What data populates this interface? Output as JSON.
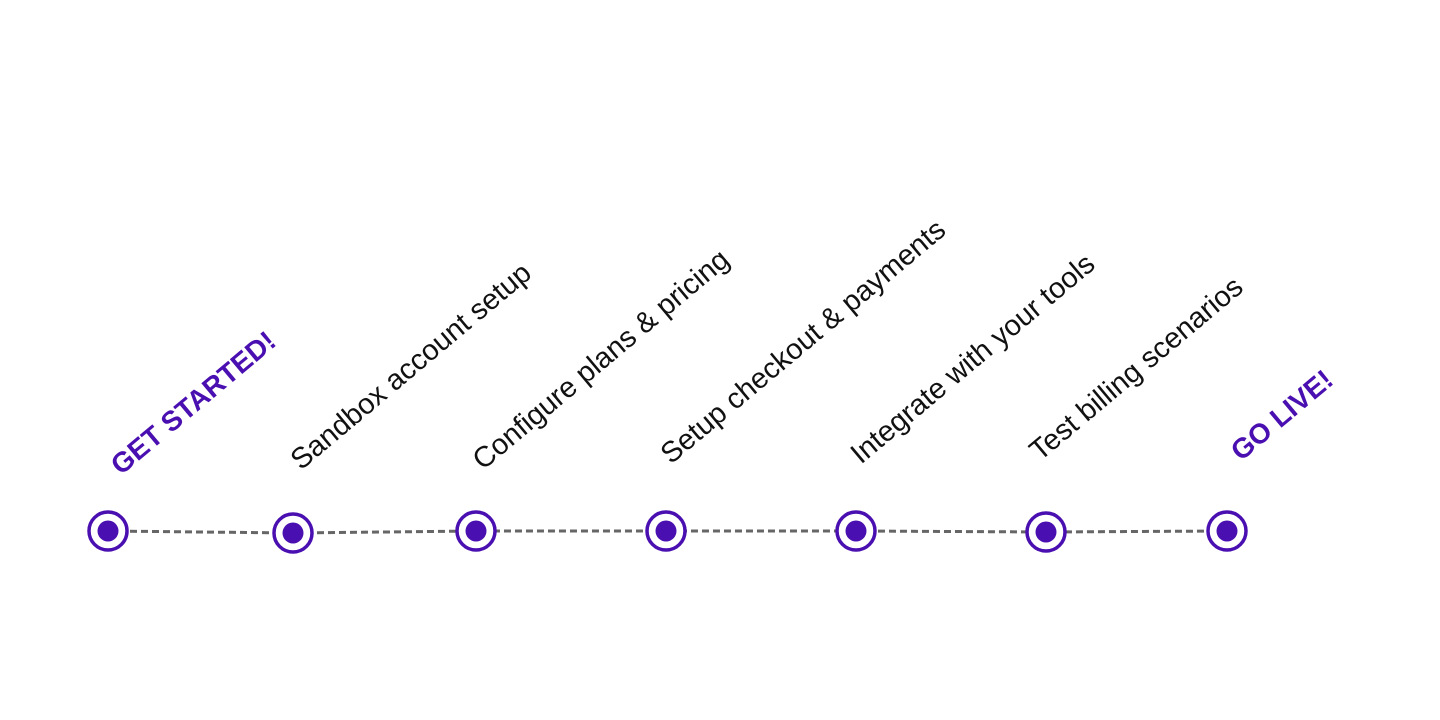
{
  "colors": {
    "accent": "#4a0fb0",
    "line": "#666666",
    "text": "#111111"
  },
  "steps": [
    {
      "label": "GET STARTED!",
      "milestone": true
    },
    {
      "label": "Sandbox account setup",
      "milestone": false
    },
    {
      "label": "Configure plans & pricing",
      "milestone": false
    },
    {
      "label": "Setup checkout & payments",
      "milestone": false
    },
    {
      "label": "Integrate with your tools",
      "milestone": false
    },
    {
      "label": "Test billing scenarios",
      "milestone": false
    },
    {
      "label": "GO LIVE!",
      "milestone": true
    }
  ]
}
